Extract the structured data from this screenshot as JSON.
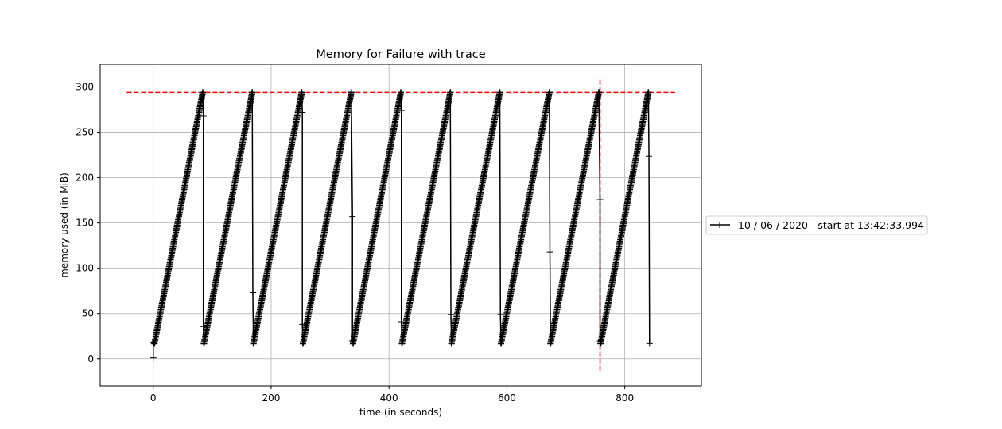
{
  "chart_data": {
    "type": "line",
    "title": "Memory for Failure with trace",
    "xlabel": "time (in seconds)",
    "ylabel": "memory used (in MiB)",
    "xlim": [
      -90,
      930
    ],
    "ylim": [
      -30,
      325
    ],
    "xticks": [
      0,
      200,
      400,
      600,
      800
    ],
    "yticks": [
      0,
      50,
      100,
      150,
      200,
      250,
      300
    ],
    "grid": true,
    "legend_position": "right, outside plot area",
    "series": [
      {
        "name": "10 / 06 / 2020 - start at 13:42:33.994",
        "color": "#000000",
        "marker": "+",
        "points": [
          [
            0,
            1
          ],
          [
            0,
            18
          ],
          [
            2,
            17
          ],
          [
            84,
            294
          ],
          [
            85,
            268
          ],
          [
            85,
            36
          ],
          [
            86,
            17
          ],
          [
            168,
            294
          ],
          [
            169,
            73
          ],
          [
            170,
            17
          ],
          [
            252,
            294
          ],
          [
            253,
            272
          ],
          [
            253,
            38
          ],
          [
            254,
            17
          ],
          [
            336,
            294
          ],
          [
            338,
            157
          ],
          [
            338,
            20
          ],
          [
            339,
            17
          ],
          [
            420,
            294
          ],
          [
            421,
            274
          ],
          [
            421,
            41
          ],
          [
            422,
            17
          ],
          [
            504,
            294
          ],
          [
            505,
            49
          ],
          [
            506,
            17
          ],
          [
            588,
            294
          ],
          [
            589,
            49
          ],
          [
            590,
            17
          ],
          [
            672,
            294
          ],
          [
            673,
            118
          ],
          [
            674,
            17
          ],
          [
            756,
            294
          ],
          [
            758,
            176
          ],
          [
            758,
            20
          ],
          [
            759,
            17
          ],
          [
            840,
            294
          ],
          [
            841,
            224
          ],
          [
            842,
            17
          ]
        ]
      }
    ],
    "reference_lines": [
      {
        "orientation": "horizontal",
        "value": 294,
        "x_range": [
          -45,
          885
        ],
        "color": "#ff0000",
        "style": "dashed"
      },
      {
        "orientation": "vertical",
        "value": 758,
        "y_range": [
          -13,
          309
        ],
        "color": "#ff0000",
        "style": "dashed"
      }
    ],
    "colors": {
      "grid": "#b0b0b0",
      "axes": "#000000",
      "series": "#000000",
      "reference": "#ff0000"
    }
  }
}
